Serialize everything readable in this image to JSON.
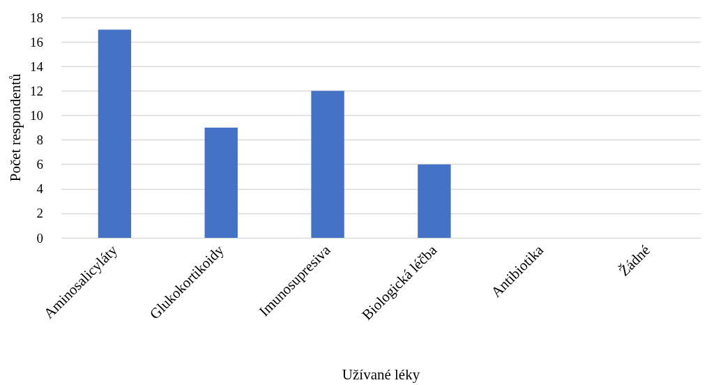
{
  "chart_data": {
    "type": "bar",
    "xlabel": "Užívané léky",
    "ylabel": "Počet respondentů",
    "categories": [
      "Aminosalicyláty",
      "Glukokortikoidy",
      "Imunosupresiva",
      "Biologická léčba",
      "Antibiotika",
      "Žádné"
    ],
    "values": [
      17,
      9,
      12,
      6,
      0,
      0
    ],
    "color": "#4472c4",
    "ylim": [
      0,
      18
    ],
    "yticks": [
      0,
      2,
      4,
      6,
      8,
      10,
      12,
      14,
      16,
      18
    ],
    "grid": "y"
  }
}
